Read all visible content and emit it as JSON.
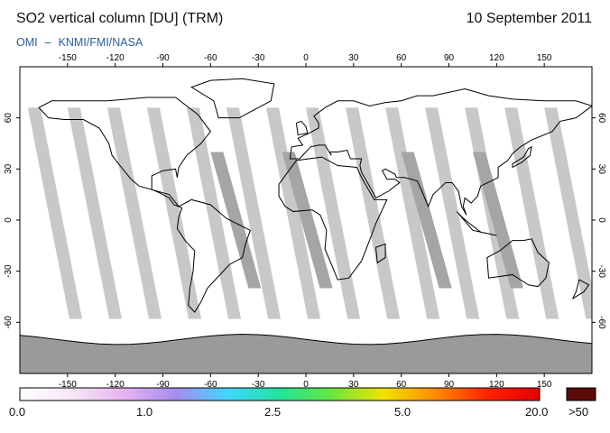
{
  "header": {
    "title": "SO2 vertical column [DU] (TRM)",
    "date": "10 September 2011",
    "credit_a": "OMI",
    "credit_sep": "–",
    "credit_b": "KNMI/FMI/NASA"
  },
  "map": {
    "lon_ticks": [
      -150,
      -120,
      -90,
      -60,
      -30,
      0,
      30,
      60,
      90,
      120,
      150
    ],
    "lat_ticks": [
      60,
      30,
      0,
      -30,
      -60
    ],
    "lon_range": [
      -180,
      180
    ],
    "lat_range": [
      -90,
      90
    ],
    "swath_color": "#c8c8c8",
    "overlap_color": "#a5a5a5",
    "land_color": "#9a9a9a"
  },
  "colorbar": {
    "labels": [
      "0.0",
      "1.0",
      "2.5",
      "5.0",
      "20.0"
    ],
    "overflow_label": ">50",
    "colors": [
      "#ffffff",
      "#f7e6f7",
      "#e7b3f0",
      "#a58cf0",
      "#3fd7ff",
      "#22e39a",
      "#68e63c",
      "#f4e100",
      "#ff8a00",
      "#ff2200",
      "#e40000"
    ],
    "overflow_color": "#5b0a0a"
  }
}
